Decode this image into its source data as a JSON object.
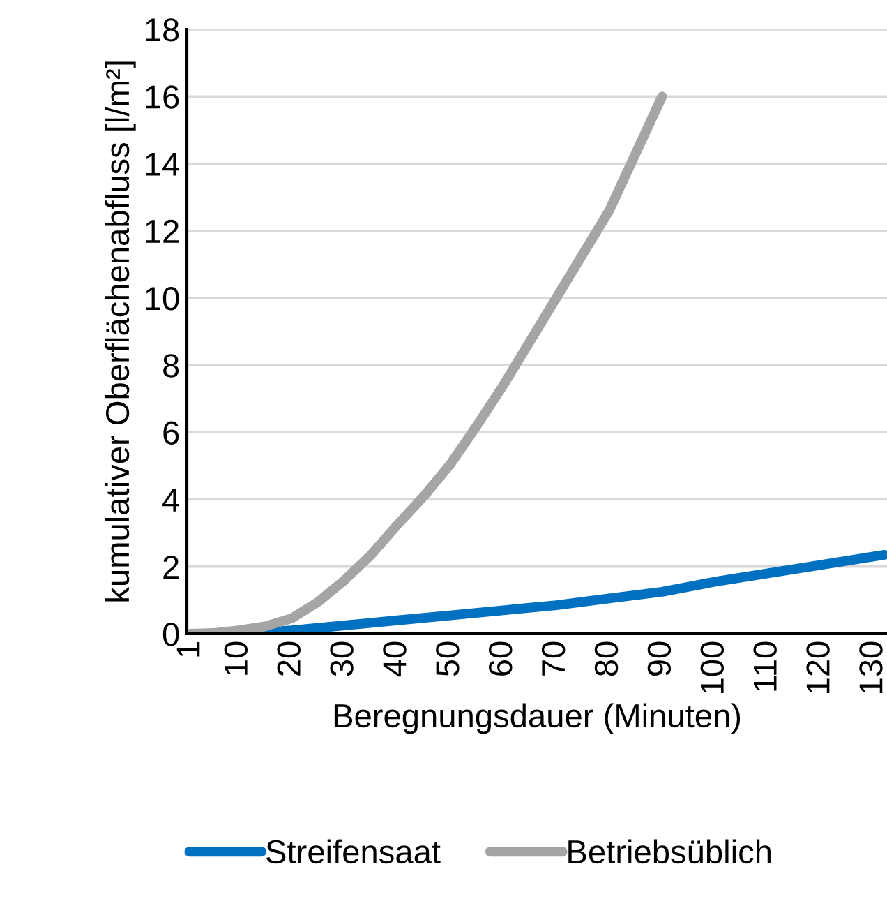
{
  "chart_data": {
    "type": "line",
    "xlabel": "Beregnungsdauer (Minuten)",
    "ylabel": "kumulativer Oberflächenabfluss [l/m²]",
    "series": [
      {
        "name": "Streifensaat",
        "color": "#0070c0",
        "x": [
          1,
          10,
          20,
          30,
          40,
          50,
          60,
          70,
          80,
          90,
          100,
          110,
          120,
          132
        ],
        "values": [
          0,
          0,
          0.1,
          0.25,
          0.4,
          0.55,
          0.7,
          0.85,
          1.05,
          1.25,
          1.55,
          1.8,
          2.05,
          2.35
        ]
      },
      {
        "name": "Betriebsüblich",
        "color": "#a5a5a5",
        "x": [
          1,
          5,
          10,
          15,
          20,
          25,
          30,
          35,
          40,
          45,
          50,
          55,
          60,
          65,
          70,
          75,
          80,
          85,
          90
        ],
        "values": [
          0,
          0.02,
          0.1,
          0.22,
          0.46,
          0.95,
          1.6,
          2.35,
          3.25,
          4.1,
          5.05,
          6.2,
          7.4,
          8.7,
          10.0,
          11.3,
          12.6,
          14.3,
          16.0
        ]
      }
    ],
    "xlim": [
      0.2,
      132.5
    ],
    "xticks": [
      1,
      10,
      20,
      30,
      40,
      50,
      60,
      70,
      80,
      90,
      100,
      110,
      120,
      130
    ],
    "ylim": [
      0,
      18
    ],
    "yticks": [
      0,
      2,
      4,
      6,
      8,
      10,
      12,
      14,
      16,
      18
    ],
    "grid": "y",
    "legend": "bottom",
    "line_style": "solid"
  }
}
